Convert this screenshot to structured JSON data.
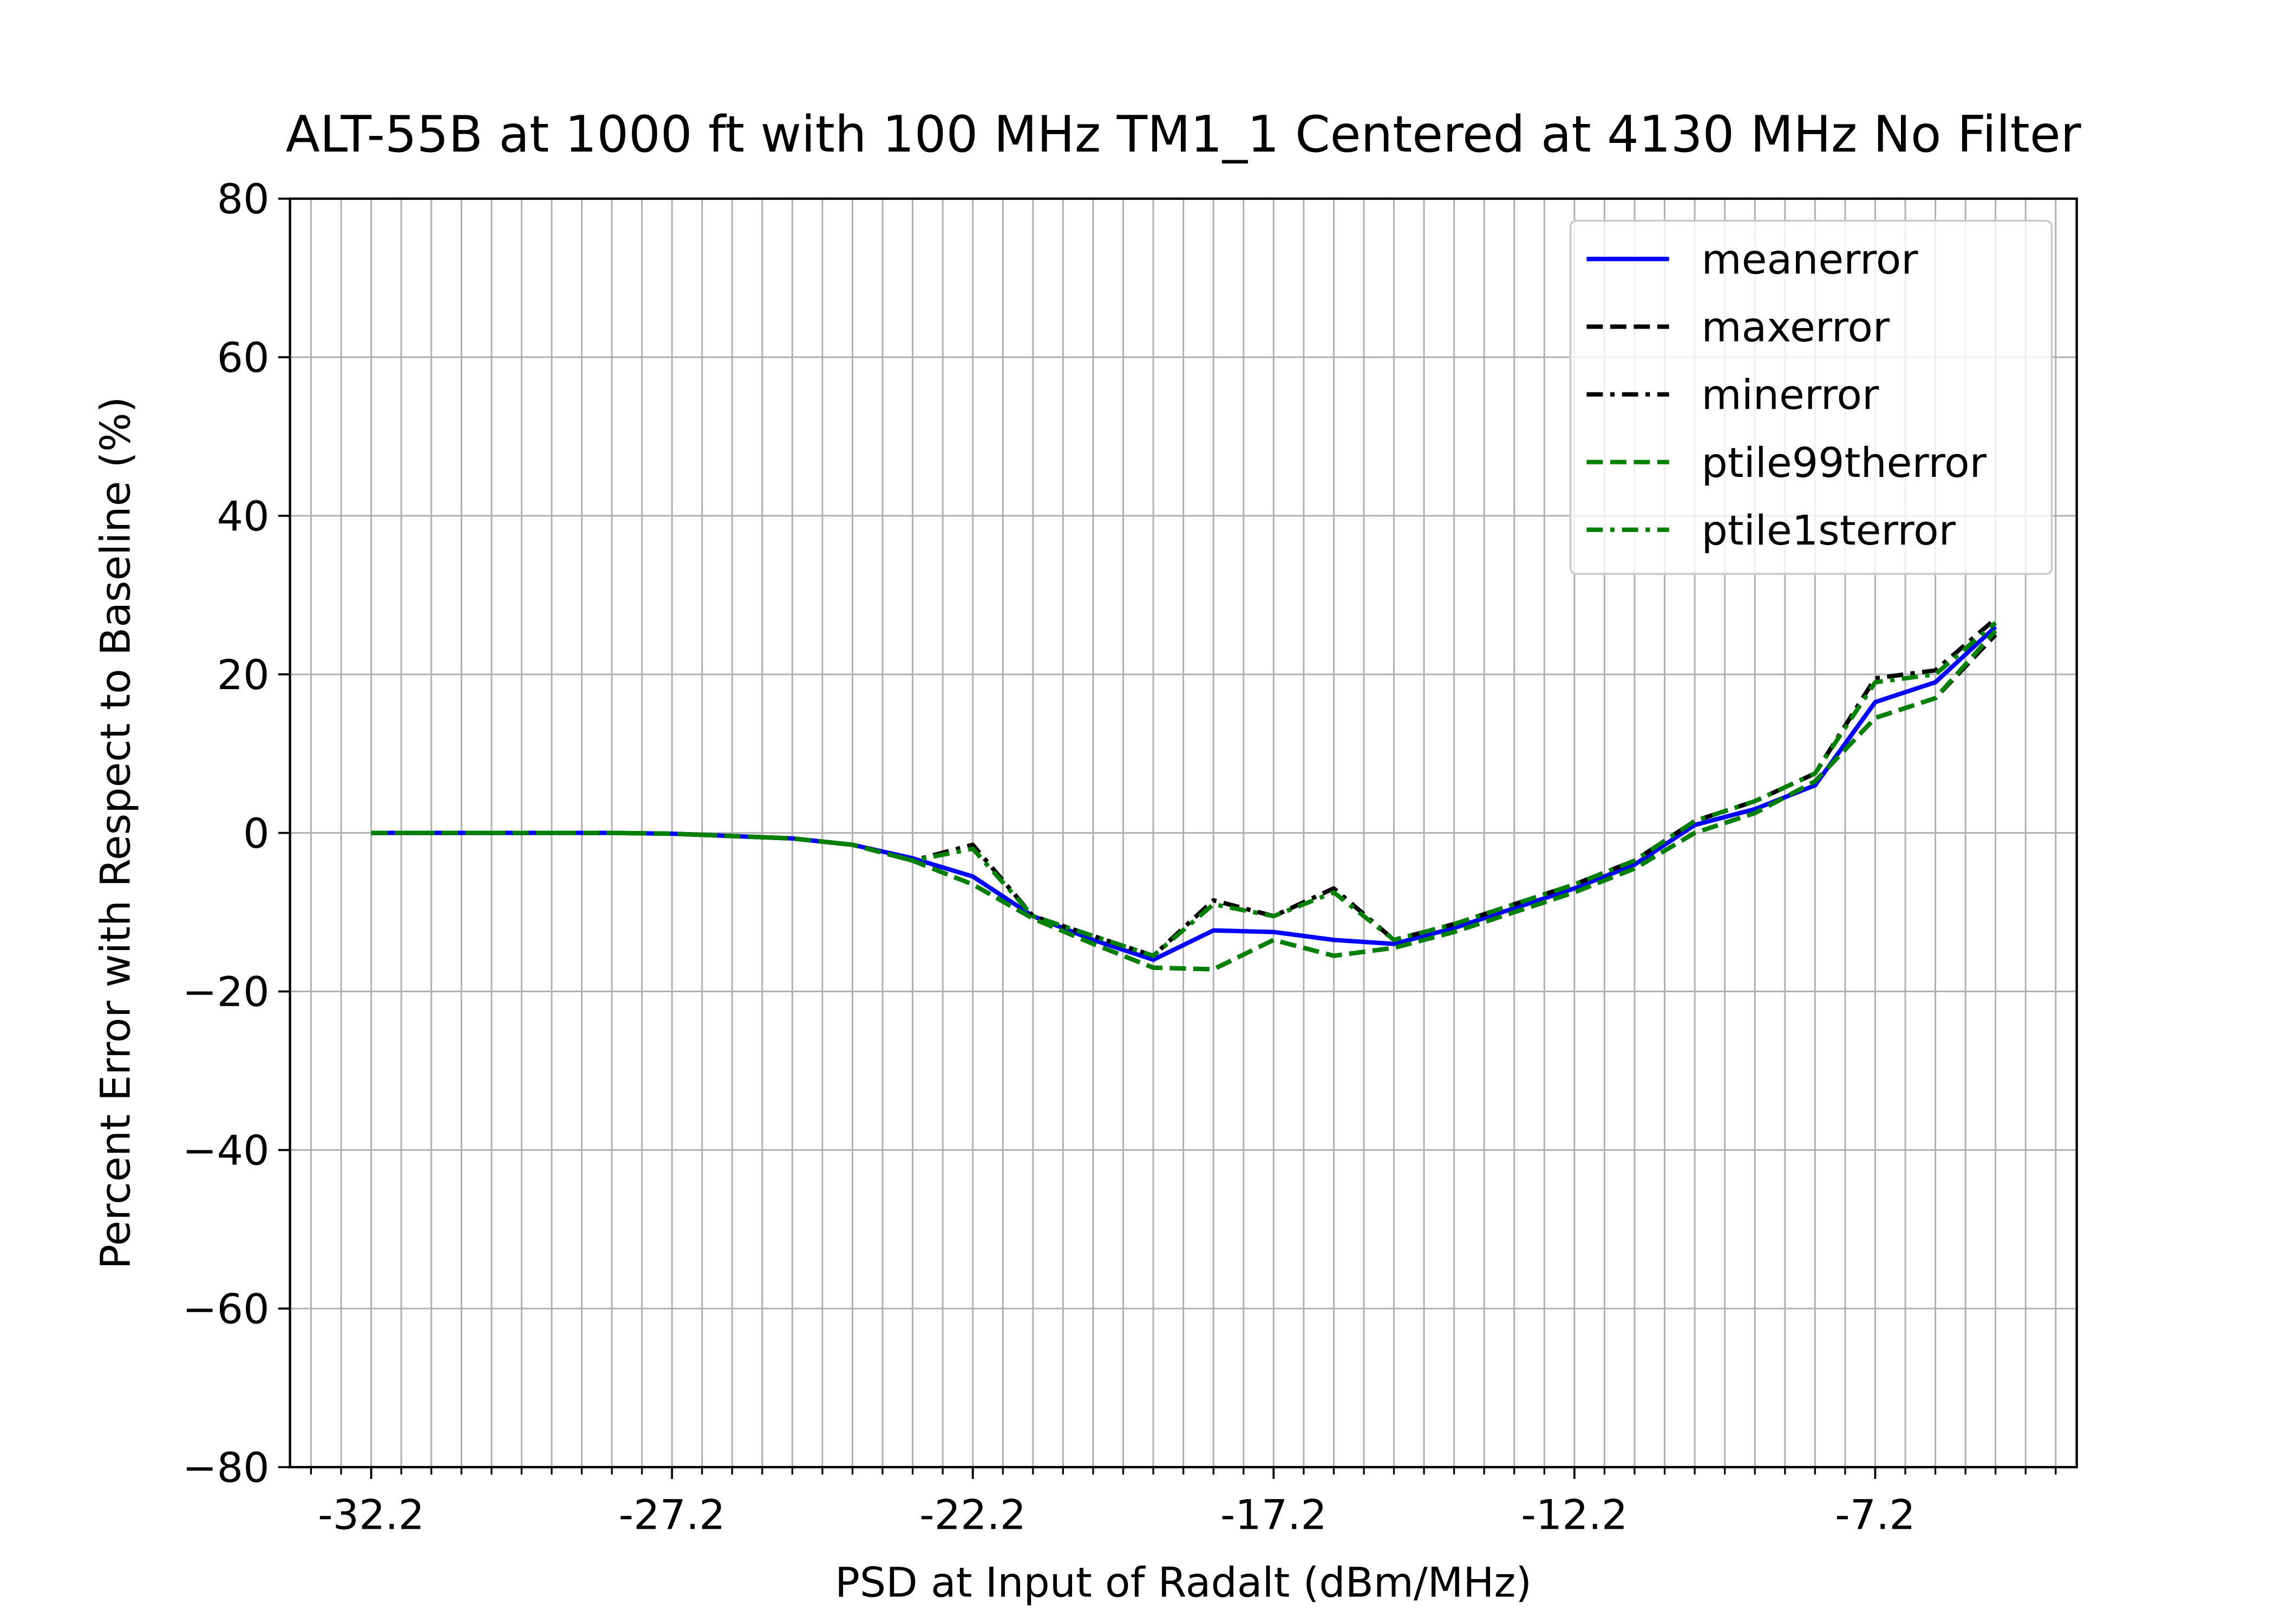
{
  "chart_data": {
    "type": "line",
    "title": "ALT-55B at 1000 ft with 100 MHz TM1_1 Centered at 4130 MHz No Filter",
    "x_label": "PSD at Input of Radalt (dBm/MHz)",
    "y_label": "Percent Error with Respect to Baseline (%)",
    "x": [
      -32.2,
      -31.2,
      -30.2,
      -29.2,
      -28.2,
      -27.2,
      -26.2,
      -25.2,
      -24.2,
      -23.2,
      -22.2,
      -21.2,
      -20.2,
      -19.2,
      -18.2,
      -17.2,
      -16.2,
      -15.2,
      -14.2,
      -13.2,
      -12.2,
      -11.2,
      -10.2,
      -9.2,
      -8.2,
      -7.2,
      -6.2,
      -5.2
    ],
    "series": [
      {
        "name": "meanerror",
        "color": "#0000ff",
        "dash": "solid",
        "values": [
          0,
          0,
          0,
          0,
          0,
          -0.1,
          -0.4,
          -0.7,
          -1.5,
          -3.2,
          -5.5,
          -10.5,
          -13.5,
          -16,
          -12.3,
          -12.5,
          -13.5,
          -14,
          -12,
          -9.5,
          -7,
          -4,
          1,
          3,
          6,
          16.5,
          19,
          26
        ]
      },
      {
        "name": "maxerror",
        "color": "#000000",
        "dash": "dashed",
        "values": [
          0,
          0,
          0,
          0,
          0,
          -0.1,
          -0.4,
          -0.7,
          -1.5,
          -3.5,
          -6.5,
          -10.8,
          -14,
          -17,
          -17.2,
          -13.5,
          -15.5,
          -14.5,
          -12.5,
          -10,
          -7.5,
          -4.5,
          0,
          2.5,
          6.5,
          14.5,
          17,
          25
        ]
      },
      {
        "name": "minerror",
        "color": "#000000",
        "dash": "dashdot",
        "values": [
          0,
          0,
          0,
          0,
          0,
          -0.1,
          -0.4,
          -0.7,
          -1.5,
          -3.5,
          -1.5,
          -10.5,
          -13,
          -15.5,
          -8.5,
          -10.5,
          -7,
          -13.5,
          -11.5,
          -9,
          -6.5,
          -3.5,
          1.5,
          4,
          7.5,
          19.5,
          20.5,
          27
        ]
      },
      {
        "name": "ptile99therror",
        "color": "#008000",
        "dash": "dashed",
        "values": [
          0,
          0,
          0,
          0,
          0,
          -0.1,
          -0.4,
          -0.7,
          -1.5,
          -3.5,
          -6.5,
          -10.8,
          -14,
          -17,
          -17.2,
          -13.5,
          -15.5,
          -14.5,
          -12.5,
          -10,
          -7.5,
          -4.5,
          0,
          2.5,
          6.5,
          14.5,
          17,
          25.5
        ]
      },
      {
        "name": "ptile1sterror",
        "color": "#008000",
        "dash": "dashdot",
        "values": [
          0,
          0,
          0,
          0,
          0,
          -0.1,
          -0.4,
          -0.7,
          -1.5,
          -3.5,
          -2,
          -10.5,
          -13,
          -15.5,
          -9,
          -10.5,
          -7.5,
          -13.5,
          -11.5,
          -9,
          -6.5,
          -3.5,
          1.5,
          4,
          7.5,
          19,
          20,
          26.5
        ]
      }
    ],
    "xlim": [
      -33.55,
      -3.85
    ],
    "ylim": [
      -80,
      80
    ],
    "xticks": [
      -32.2,
      -27.2,
      -22.2,
      -17.2,
      -12.2,
      -7.2
    ],
    "xminorticks": [
      -33.2,
      -32.7,
      -31.7,
      -31.2,
      -30.7,
      -30.2,
      -29.7,
      -29.2,
      -28.7,
      -28.2,
      -27.7,
      -26.7,
      -26.2,
      -25.7,
      -25.2,
      -24.7,
      -24.2,
      -23.7,
      -23.2,
      -22.7,
      -21.7,
      -21.2,
      -20.7,
      -20.2,
      -19.7,
      -19.2,
      -18.7,
      -18.2,
      -17.7,
      -16.7,
      -16.2,
      -15.7,
      -15.2,
      -14.7,
      -14.2,
      -13.7,
      -13.2,
      -12.7,
      -11.7,
      -11.2,
      -10.7,
      -10.2,
      -9.7,
      -9.2,
      -8.7,
      -8.2,
      -7.7,
      -6.7,
      -6.2,
      -5.7,
      -5.2,
      -4.7,
      -4.2
    ],
    "yticks": [
      {
        "value": -80,
        "label": "−80"
      },
      {
        "value": -60,
        "label": "−60"
      },
      {
        "value": -40,
        "label": "−40"
      },
      {
        "value": -20,
        "label": "−20"
      },
      0,
      20,
      40,
      60,
      80
    ],
    "grid": true,
    "minor_grid": true,
    "legend": "upper right"
  }
}
